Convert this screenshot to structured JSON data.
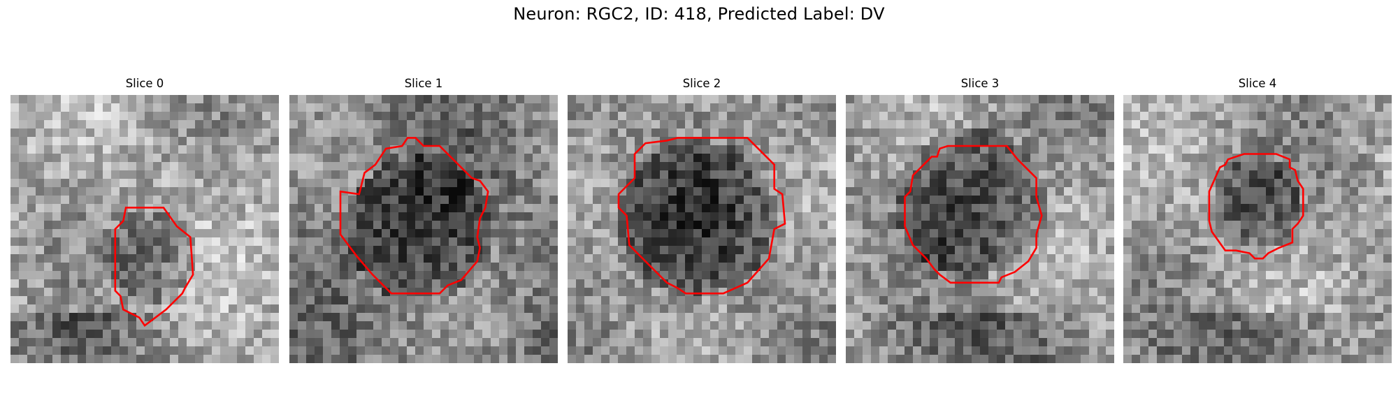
{
  "figure": {
    "title": "Neuron: RGC2, ID: 418, Predicted Label: DV",
    "outline_color": "#ff0000",
    "colormap": "gray"
  },
  "slices": [
    {
      "label": "Slice 0",
      "tone": {
        "base": 0.66,
        "blob_cx": 0.52,
        "blob_cy": 0.6,
        "blob_r": 0.17,
        "blob_depth": 0.25,
        "dark_bottom": true
      },
      "outline": [
        [
          0.43,
          0.42
        ],
        [
          0.57,
          0.42
        ],
        [
          0.62,
          0.49
        ],
        [
          0.67,
          0.53
        ],
        [
          0.68,
          0.67
        ],
        [
          0.65,
          0.72
        ],
        [
          0.64,
          0.74
        ],
        [
          0.58,
          0.8
        ],
        [
          0.54,
          0.83
        ],
        [
          0.5,
          0.86
        ],
        [
          0.48,
          0.83
        ],
        [
          0.42,
          0.8
        ],
        [
          0.41,
          0.75
        ],
        [
          0.39,
          0.73
        ],
        [
          0.39,
          0.5
        ],
        [
          0.42,
          0.47
        ]
      ]
    },
    {
      "label": "Slice 1",
      "tone": {
        "base": 0.5,
        "blob_cx": 0.49,
        "blob_cy": 0.5,
        "blob_r": 0.27,
        "blob_depth": 0.3,
        "dark_bottom": false
      },
      "outline": [
        [
          0.26,
          0.37
        ],
        [
          0.28,
          0.29
        ],
        [
          0.32,
          0.26
        ],
        [
          0.36,
          0.2
        ],
        [
          0.42,
          0.19
        ],
        [
          0.44,
          0.16
        ],
        [
          0.47,
          0.16
        ],
        [
          0.5,
          0.19
        ],
        [
          0.56,
          0.19
        ],
        [
          0.68,
          0.31
        ],
        [
          0.71,
          0.32
        ],
        [
          0.74,
          0.36
        ],
        [
          0.73,
          0.42
        ],
        [
          0.71,
          0.46
        ],
        [
          0.7,
          0.53
        ],
        [
          0.71,
          0.57
        ],
        [
          0.7,
          0.62
        ],
        [
          0.64,
          0.69
        ],
        [
          0.59,
          0.71
        ],
        [
          0.56,
          0.74
        ],
        [
          0.38,
          0.74
        ],
        [
          0.31,
          0.67
        ],
        [
          0.25,
          0.6
        ],
        [
          0.19,
          0.52
        ],
        [
          0.19,
          0.36
        ]
      ]
    },
    {
      "label": "Slice 2",
      "tone": {
        "base": 0.58,
        "blob_cx": 0.48,
        "blob_cy": 0.46,
        "blob_r": 0.29,
        "blob_depth": 0.32,
        "dark_bottom": false
      },
      "outline": [
        [
          0.25,
          0.22
        ],
        [
          0.29,
          0.18
        ],
        [
          0.37,
          0.17
        ],
        [
          0.41,
          0.16
        ],
        [
          0.67,
          0.16
        ],
        [
          0.74,
          0.23
        ],
        [
          0.77,
          0.26
        ],
        [
          0.77,
          0.35
        ],
        [
          0.8,
          0.37
        ],
        [
          0.81,
          0.48
        ],
        [
          0.77,
          0.5
        ],
        [
          0.75,
          0.61
        ],
        [
          0.67,
          0.7
        ],
        [
          0.58,
          0.74
        ],
        [
          0.44,
          0.74
        ],
        [
          0.41,
          0.72
        ],
        [
          0.37,
          0.7
        ],
        [
          0.31,
          0.64
        ],
        [
          0.23,
          0.56
        ],
        [
          0.22,
          0.45
        ],
        [
          0.19,
          0.42
        ],
        [
          0.19,
          0.37
        ],
        [
          0.25,
          0.31
        ]
      ]
    },
    {
      "label": "Slice 3",
      "tone": {
        "base": 0.6,
        "blob_cx": 0.47,
        "blob_cy": 0.4,
        "blob_r": 0.28,
        "blob_depth": 0.32,
        "dark_bottom": true
      },
      "outline": [
        [
          0.29,
          0.26
        ],
        [
          0.32,
          0.23
        ],
        [
          0.34,
          0.23
        ],
        [
          0.35,
          0.2
        ],
        [
          0.38,
          0.19
        ],
        [
          0.4,
          0.19
        ],
        [
          0.6,
          0.19
        ],
        [
          0.64,
          0.24
        ],
        [
          0.71,
          0.31
        ],
        [
          0.71,
          0.38
        ],
        [
          0.73,
          0.45
        ],
        [
          0.71,
          0.52
        ],
        [
          0.71,
          0.57
        ],
        [
          0.68,
          0.62
        ],
        [
          0.63,
          0.66
        ],
        [
          0.58,
          0.68
        ],
        [
          0.57,
          0.7
        ],
        [
          0.39,
          0.7
        ],
        [
          0.35,
          0.67
        ],
        [
          0.33,
          0.65
        ],
        [
          0.3,
          0.61
        ],
        [
          0.25,
          0.56
        ],
        [
          0.22,
          0.49
        ],
        [
          0.22,
          0.38
        ],
        [
          0.24,
          0.36
        ],
        [
          0.25,
          0.3
        ],
        [
          0.28,
          0.27
        ]
      ]
    },
    {
      "label": "Slice 4",
      "tone": {
        "base": 0.62,
        "blob_cx": 0.5,
        "blob_cy": 0.4,
        "blob_r": 0.17,
        "blob_depth": 0.3,
        "dark_bottom": true
      },
      "outline": [
        [
          0.36,
          0.27
        ],
        [
          0.38,
          0.26
        ],
        [
          0.39,
          0.24
        ],
        [
          0.42,
          0.23
        ],
        [
          0.45,
          0.22
        ],
        [
          0.5,
          0.22
        ],
        [
          0.57,
          0.22
        ],
        [
          0.62,
          0.24
        ],
        [
          0.62,
          0.27
        ],
        [
          0.64,
          0.28
        ],
        [
          0.65,
          0.32
        ],
        [
          0.67,
          0.35
        ],
        [
          0.67,
          0.45
        ],
        [
          0.65,
          0.48
        ],
        [
          0.63,
          0.5
        ],
        [
          0.63,
          0.55
        ],
        [
          0.58,
          0.57
        ],
        [
          0.54,
          0.59
        ],
        [
          0.52,
          0.61
        ],
        [
          0.49,
          0.61
        ],
        [
          0.47,
          0.59
        ],
        [
          0.42,
          0.58
        ],
        [
          0.38,
          0.58
        ],
        [
          0.33,
          0.51
        ],
        [
          0.32,
          0.47
        ],
        [
          0.32,
          0.36
        ]
      ]
    }
  ]
}
